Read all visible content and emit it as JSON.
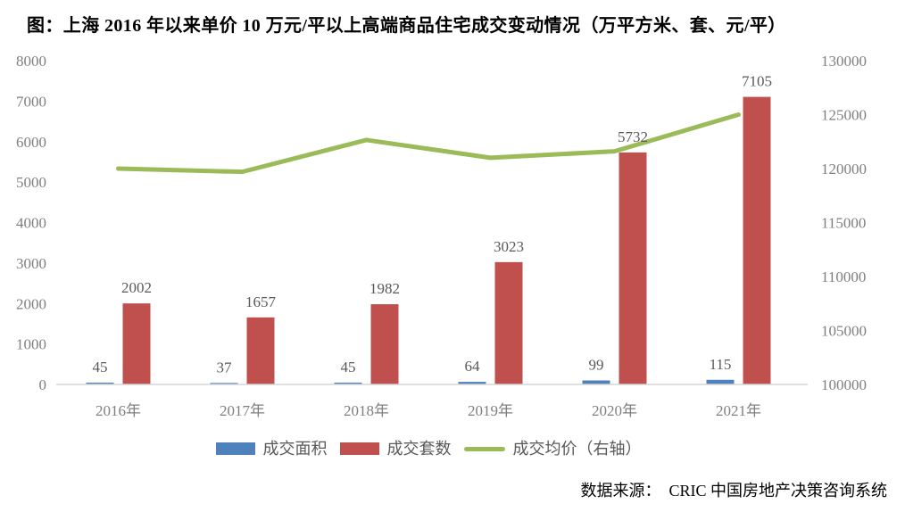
{
  "title": "图：上海 2016 年以来单价 10 万元/平以上高端商品住宅成交变动情况（万平方米、套、元/平）",
  "source": "数据来源：  CRIC 中国房地产决策咨询系统",
  "colors": {
    "area_bar": "#4F81BD",
    "units_bar": "#C0504D",
    "price_line": "#9BBB59",
    "axis_text": "#7F7F7F",
    "data_label": "#595959",
    "axis_line": "#D6D6D6"
  },
  "chart_data": {
    "type": "bar",
    "subtype": "bar+line combo, dual axis",
    "title": "图：上海 2016 年以来单价 10 万元/平以上高端商品住宅成交变动情况（万平方米、套、元/平）",
    "categories": [
      "2016年",
      "2017年",
      "2018年",
      "2019年",
      "2020年",
      "2021年"
    ],
    "series": [
      {
        "name": "成交面积",
        "type": "bar",
        "axis": "left",
        "color": "#4F81BD",
        "values": [
          45,
          37,
          45,
          64,
          99,
          115
        ]
      },
      {
        "name": "成交套数",
        "type": "bar",
        "axis": "left",
        "color": "#C0504D",
        "values": [
          2002,
          1657,
          1982,
          3023,
          5732,
          7105
        ]
      },
      {
        "name": "成交均价（右轴）",
        "type": "line",
        "axis": "right",
        "color": "#9BBB59",
        "values": [
          120000,
          119700,
          122650,
          121000,
          121600,
          125000
        ]
      }
    ],
    "left_axis": {
      "min": 0,
      "max": 8000,
      "step": 1000,
      "ticks": [
        "0",
        "1000",
        "2000",
        "3000",
        "4000",
        "5000",
        "6000",
        "7000",
        "8000"
      ]
    },
    "right_axis": {
      "min": 100000,
      "max": 130000,
      "step": 5000,
      "ticks": [
        "100000",
        "105000",
        "110000",
        "115000",
        "120000",
        "125000",
        "130000"
      ]
    },
    "grid": false,
    "legend_position": "bottom",
    "data_labels": "shown above bars"
  }
}
